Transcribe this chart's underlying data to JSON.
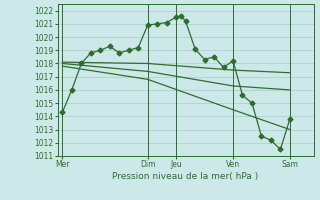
{
  "bg_color": "#cce8e8",
  "grid_color_major": "#aacccc",
  "grid_color_minor": "#c8e0e0",
  "line_color": "#2d6e2d",
  "title": "Pression niveau de la mer( hPa )",
  "ylim": [
    1011,
    1022.5
  ],
  "ytick_min": 1011,
  "ytick_max": 1022,
  "xlim": [
    0,
    27
  ],
  "day_labels": [
    "Mer",
    "Dim",
    "Jeu",
    "Ven",
    "Sam"
  ],
  "day_positions": [
    0.5,
    9.5,
    12.5,
    18.5,
    24.5
  ],
  "vline_positions": [
    0.5,
    9.5,
    12.5,
    18.5,
    24.5
  ],
  "series1_x": [
    0.5,
    1.5,
    2.5,
    3.5,
    4.5,
    5.5,
    6.5,
    7.5,
    8.5,
    9.5,
    10.5,
    11.5,
    12.5,
    13.0,
    13.5,
    14.5,
    15.5,
    16.5,
    17.5,
    18.5,
    19.5,
    20.5,
    21.5,
    22.5,
    23.5,
    24.5
  ],
  "series1_y": [
    1014.3,
    1016.0,
    1018.0,
    1018.8,
    1019.0,
    1019.3,
    1018.8,
    1019.0,
    1019.2,
    1020.9,
    1021.0,
    1021.1,
    1021.5,
    1021.6,
    1021.2,
    1019.1,
    1018.3,
    1018.5,
    1017.7,
    1018.2,
    1015.6,
    1015.0,
    1012.5,
    1012.2,
    1011.5,
    1013.8
  ],
  "series2_x": [
    0.5,
    9.5,
    18.5,
    24.5
  ],
  "series2_y": [
    1018.1,
    1018.0,
    1017.5,
    1017.3
  ],
  "series3_x": [
    0.5,
    9.5,
    18.5,
    24.5
  ],
  "series3_y": [
    1018.0,
    1017.4,
    1016.3,
    1016.0
  ],
  "series4_x": [
    0.5,
    9.5,
    18.5,
    24.5
  ],
  "series4_y": [
    1017.8,
    1016.8,
    1014.5,
    1013.0
  ],
  "figsize": [
    3.2,
    2.0
  ],
  "dpi": 100
}
